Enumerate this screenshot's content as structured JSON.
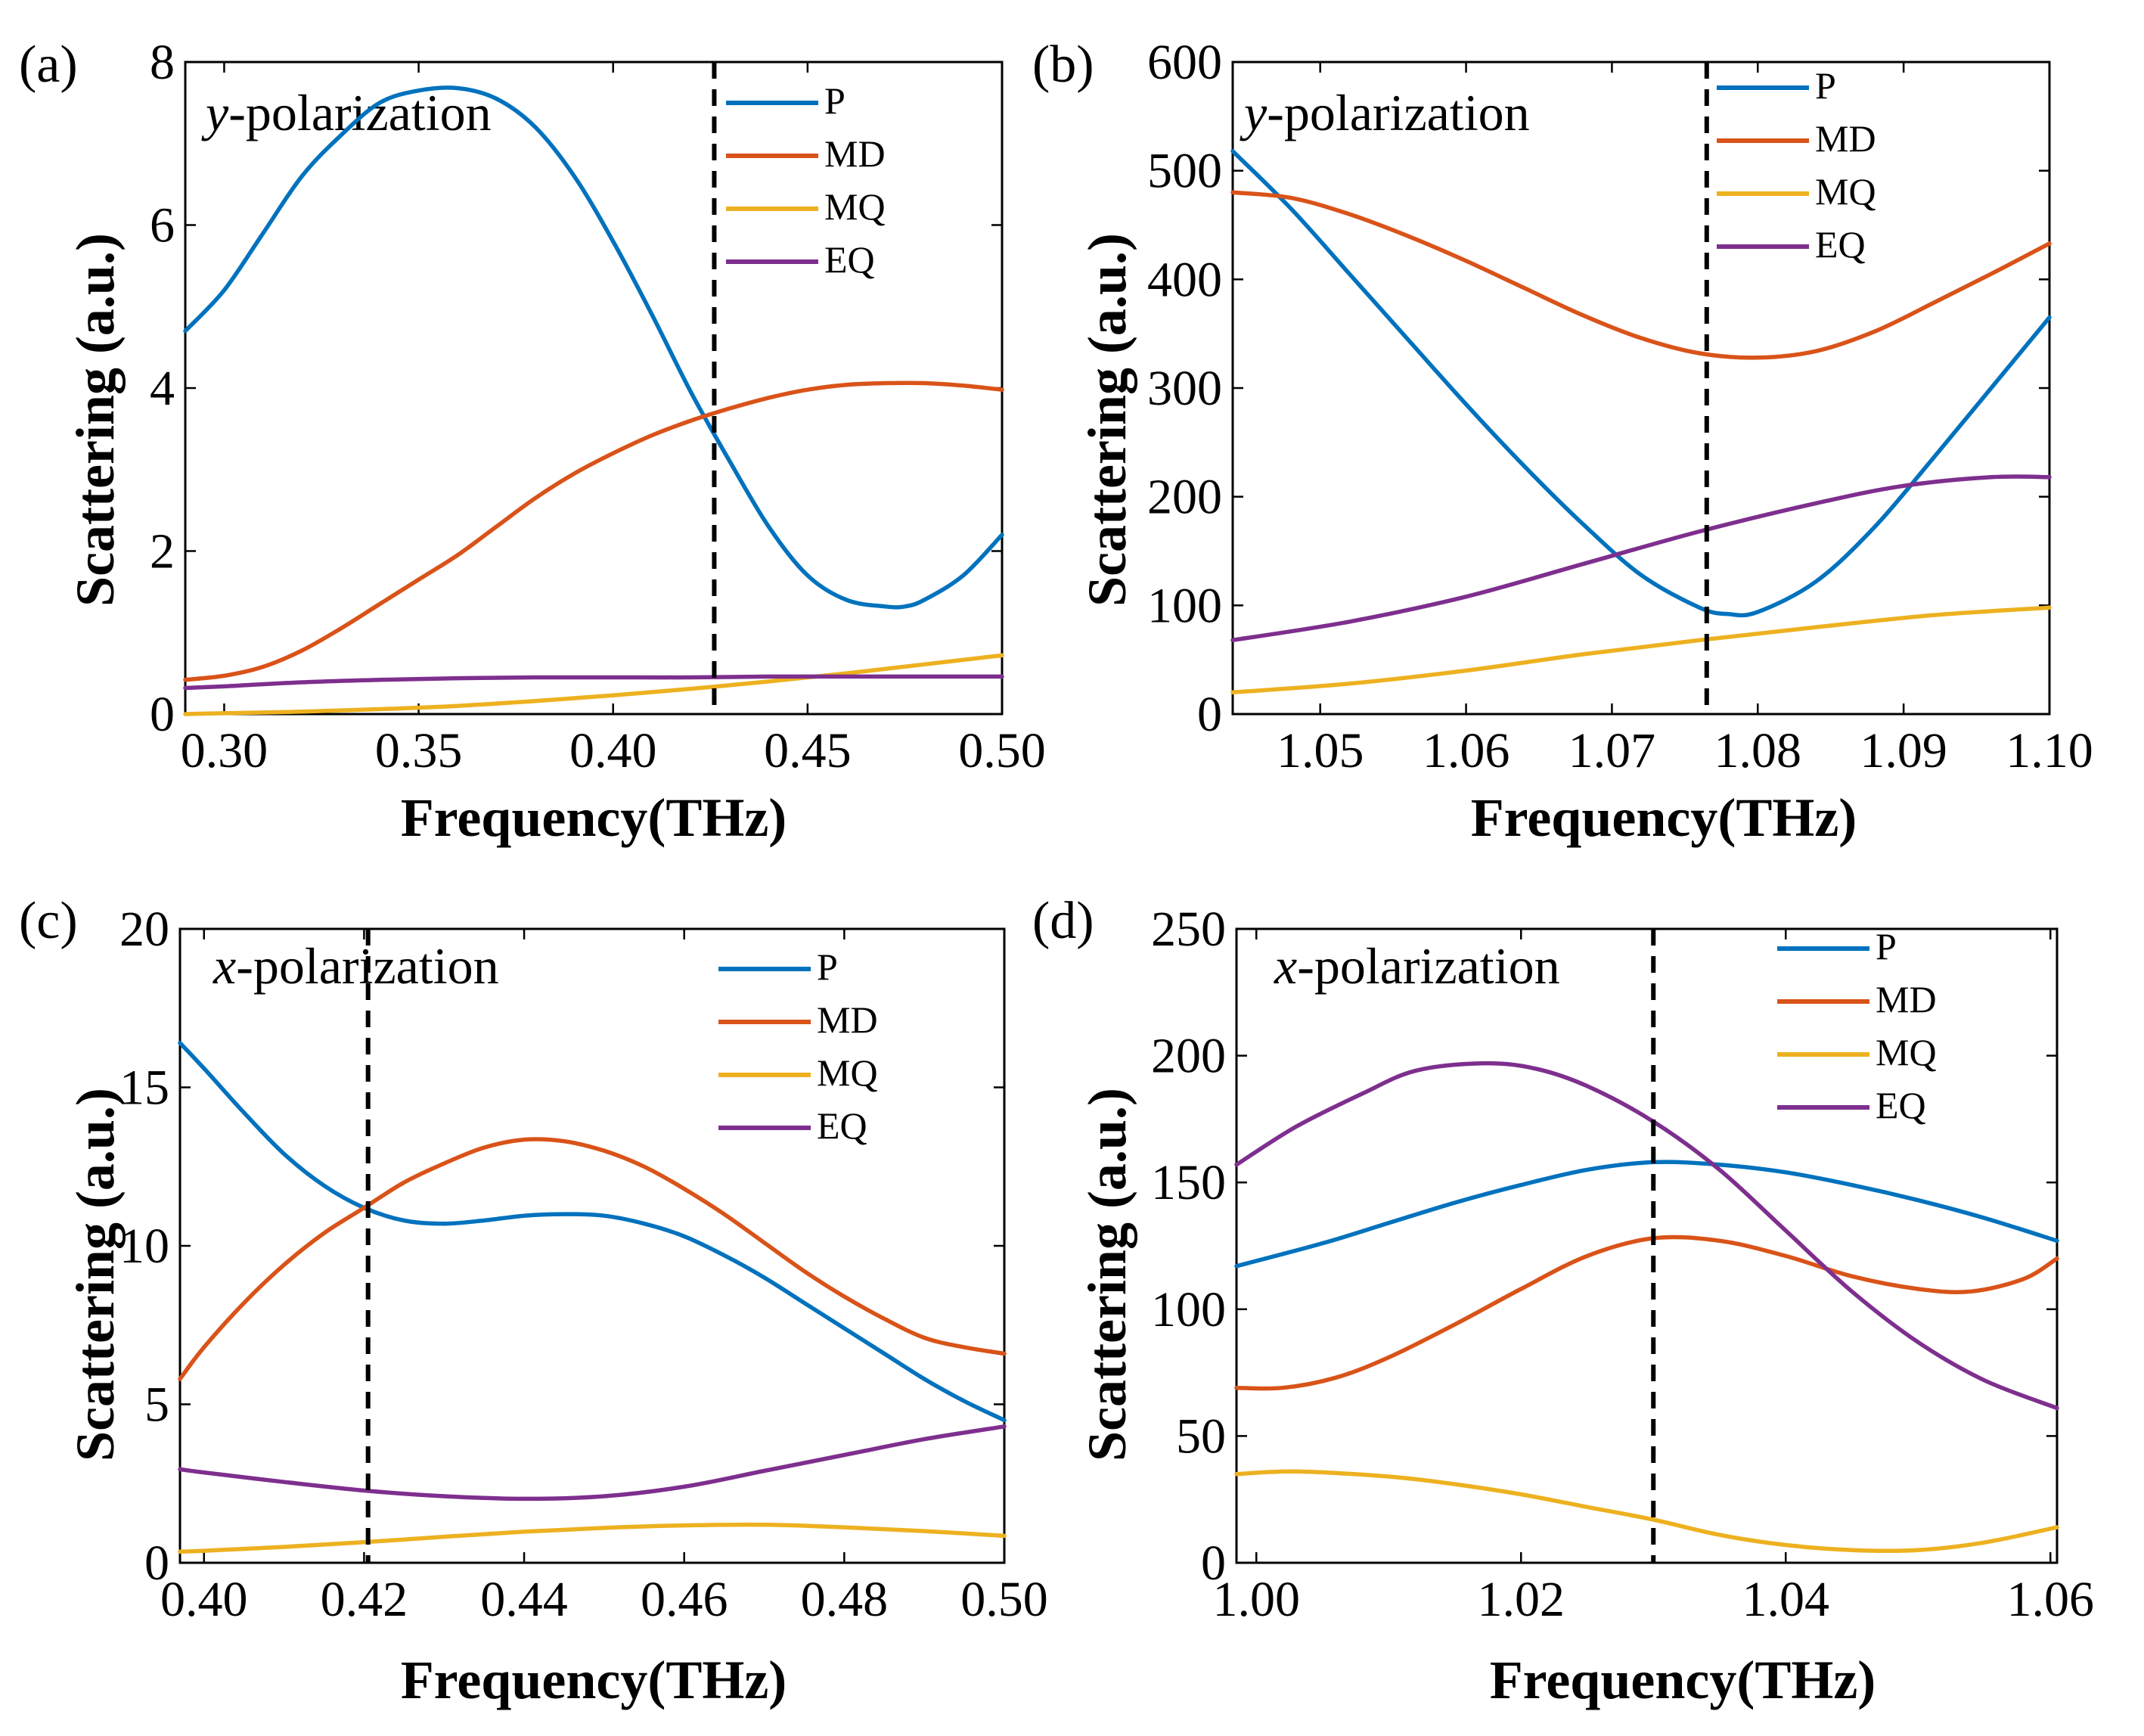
{
  "colors": {
    "P": "#0072BD",
    "MD": "#D95319",
    "MQ": "#EDB120",
    "EQ": "#7E2F8E"
  },
  "chart_data": [
    {
      "type": "line",
      "panel_label": "(a)",
      "polarization_prefix": "y",
      "polarization_suffix": "-polarization",
      "xlabel": "Frequency(THz)",
      "ylabel": "Scattering (a.u.)",
      "xlim": [
        0.29,
        0.5
      ],
      "ylim": [
        0,
        8
      ],
      "xticks": [
        0.3,
        0.35,
        0.4,
        0.45,
        0.5
      ],
      "xtick_labels": [
        "0.30",
        "0.35",
        "0.40",
        "0.45",
        "0.50"
      ],
      "yticks": [
        0,
        2,
        4,
        6,
        8
      ],
      "ytick_labels": [
        "0",
        "2",
        "4",
        "6",
        "8"
      ],
      "vline": 0.426,
      "legend": [
        "P",
        "MD",
        "MQ",
        "EQ"
      ],
      "series": [
        {
          "name": "P",
          "x": [
            0.29,
            0.3,
            0.31,
            0.32,
            0.33,
            0.34,
            0.35,
            0.36,
            0.37,
            0.38,
            0.39,
            0.4,
            0.41,
            0.42,
            0.43,
            0.44,
            0.45,
            0.46,
            0.47,
            0.475,
            0.48,
            0.49,
            0.5
          ],
          "y": [
            4.7,
            5.2,
            5.9,
            6.6,
            7.1,
            7.5,
            7.65,
            7.68,
            7.55,
            7.2,
            6.6,
            5.8,
            4.9,
            3.95,
            3.1,
            2.3,
            1.7,
            1.4,
            1.32,
            1.32,
            1.4,
            1.7,
            2.2
          ]
        },
        {
          "name": "MD",
          "x": [
            0.29,
            0.3,
            0.31,
            0.32,
            0.33,
            0.34,
            0.35,
            0.36,
            0.37,
            0.38,
            0.39,
            0.4,
            0.41,
            0.42,
            0.43,
            0.44,
            0.45,
            0.46,
            0.47,
            0.48,
            0.49,
            0.5
          ],
          "y": [
            0.42,
            0.47,
            0.58,
            0.78,
            1.05,
            1.35,
            1.65,
            1.95,
            2.3,
            2.65,
            2.95,
            3.2,
            3.42,
            3.6,
            3.75,
            3.88,
            3.98,
            4.04,
            4.06,
            4.06,
            4.03,
            3.98
          ]
        },
        {
          "name": "MQ",
          "x": [
            0.29,
            0.3,
            0.32,
            0.34,
            0.36,
            0.38,
            0.4,
            0.42,
            0.44,
            0.46,
            0.48,
            0.5
          ],
          "y": [
            0.0,
            0.01,
            0.03,
            0.06,
            0.1,
            0.16,
            0.23,
            0.31,
            0.4,
            0.5,
            0.61,
            0.72
          ]
        },
        {
          "name": "EQ",
          "x": [
            0.29,
            0.3,
            0.32,
            0.34,
            0.36,
            0.38,
            0.4,
            0.42,
            0.44,
            0.46,
            0.48,
            0.5
          ],
          "y": [
            0.32,
            0.34,
            0.39,
            0.42,
            0.44,
            0.45,
            0.45,
            0.45,
            0.46,
            0.46,
            0.46,
            0.46
          ]
        }
      ]
    },
    {
      "type": "line",
      "panel_label": "(b)",
      "polarization_prefix": "y",
      "polarization_suffix": "-polarization",
      "xlabel": "Frequency(THz)",
      "ylabel": "Scattering (a.u.)",
      "xlim": [
        1.044,
        1.1
      ],
      "ylim": [
        0,
        600
      ],
      "xticks": [
        1.05,
        1.06,
        1.07,
        1.08,
        1.09,
        1.1
      ],
      "xtick_labels": [
        "1.05",
        "1.06",
        "1.07",
        "1.08",
        "1.09",
        "1.10"
      ],
      "yticks": [
        0,
        100,
        200,
        300,
        400,
        500,
        600
      ],
      "ytick_labels": [
        "0",
        "100",
        "200",
        "300",
        "400",
        "500",
        "600"
      ],
      "vline": 1.0765,
      "legend": [
        "P",
        "MD",
        "MQ",
        "EQ"
      ],
      "series": [
        {
          "name": "P",
          "x": [
            1.044,
            1.048,
            1.052,
            1.056,
            1.06,
            1.064,
            1.068,
            1.072,
            1.076,
            1.078,
            1.08,
            1.084,
            1.088,
            1.092,
            1.096,
            1.1
          ],
          "y": [
            518,
            465,
            405,
            345,
            285,
            228,
            175,
            128,
            98,
            92,
            94,
            122,
            172,
            235,
            300,
            365
          ]
        },
        {
          "name": "MD",
          "x": [
            1.044,
            1.048,
            1.052,
            1.056,
            1.06,
            1.064,
            1.068,
            1.072,
            1.076,
            1.08,
            1.084,
            1.088,
            1.092,
            1.096,
            1.1
          ],
          "y": [
            480,
            475,
            460,
            440,
            417,
            392,
            367,
            346,
            332,
            328,
            334,
            352,
            378,
            405,
            433
          ]
        },
        {
          "name": "MQ",
          "x": [
            1.044,
            1.052,
            1.06,
            1.068,
            1.076,
            1.084,
            1.092,
            1.1
          ],
          "y": [
            20,
            28,
            40,
            55,
            68,
            80,
            91,
            98
          ]
        },
        {
          "name": "EQ",
          "x": [
            1.044,
            1.052,
            1.06,
            1.068,
            1.076,
            1.084,
            1.09,
            1.096,
            1.1
          ],
          "y": [
            68,
            85,
            108,
            138,
            168,
            194,
            210,
            218,
            218
          ]
        }
      ]
    },
    {
      "type": "line",
      "panel_label": "(c)",
      "polarization_prefix": "x",
      "polarization_suffix": "-polarization",
      "xlabel": "Frequency(THz)",
      "ylabel": "Scattering (a.u.)",
      "xlim": [
        0.397,
        0.5
      ],
      "ylim": [
        0,
        20
      ],
      "xticks": [
        0.4,
        0.42,
        0.44,
        0.46,
        0.48,
        0.5
      ],
      "xtick_labels": [
        "0.40",
        "0.42",
        "0.44",
        "0.46",
        "0.48",
        "0.50"
      ],
      "yticks": [
        0,
        5,
        10,
        15,
        20
      ],
      "ytick_labels": [
        "0",
        "5",
        "10",
        "15",
        "20"
      ],
      "vline": 0.4205,
      "legend": [
        "P",
        "MD",
        "MQ",
        "EQ"
      ],
      "series": [
        {
          "name": "P",
          "x": [
            0.397,
            0.4,
            0.405,
            0.41,
            0.415,
            0.42,
            0.425,
            0.43,
            0.435,
            0.44,
            0.445,
            0.45,
            0.455,
            0.46,
            0.465,
            0.47,
            0.475,
            0.48,
            0.485,
            0.49,
            0.495,
            0.5
          ],
          "y": [
            16.4,
            15.6,
            14.2,
            12.9,
            11.9,
            11.2,
            10.8,
            10.7,
            10.8,
            10.95,
            11.0,
            10.95,
            10.7,
            10.3,
            9.7,
            9.0,
            8.2,
            7.4,
            6.6,
            5.8,
            5.1,
            4.5
          ]
        },
        {
          "name": "MD",
          "x": [
            0.397,
            0.4,
            0.405,
            0.41,
            0.415,
            0.42,
            0.425,
            0.43,
            0.435,
            0.44,
            0.445,
            0.45,
            0.455,
            0.46,
            0.465,
            0.47,
            0.475,
            0.48,
            0.485,
            0.49,
            0.495,
            0.5
          ],
          "y": [
            5.8,
            6.8,
            8.2,
            9.4,
            10.4,
            11.2,
            12.0,
            12.6,
            13.1,
            13.35,
            13.3,
            13.0,
            12.5,
            11.8,
            11.0,
            10.1,
            9.2,
            8.4,
            7.7,
            7.1,
            6.8,
            6.6
          ]
        },
        {
          "name": "MQ",
          "x": [
            0.397,
            0.4,
            0.41,
            0.42,
            0.43,
            0.44,
            0.45,
            0.46,
            0.47,
            0.48,
            0.49,
            0.5
          ],
          "y": [
            0.35,
            0.38,
            0.5,
            0.65,
            0.82,
            0.98,
            1.1,
            1.18,
            1.2,
            1.12,
            1.0,
            0.85
          ]
        },
        {
          "name": "EQ",
          "x": [
            0.397,
            0.4,
            0.41,
            0.42,
            0.43,
            0.44,
            0.45,
            0.46,
            0.47,
            0.48,
            0.49,
            0.5
          ],
          "y": [
            2.95,
            2.85,
            2.55,
            2.28,
            2.1,
            2.02,
            2.1,
            2.4,
            2.9,
            3.4,
            3.9,
            4.3
          ]
        }
      ]
    },
    {
      "type": "line",
      "panel_label": "(d)",
      "polarization_prefix": "x",
      "polarization_suffix": "-polarization",
      "xlabel": "Frequency(THz)",
      "ylabel": "Scattering (a.u.)",
      "xlim": [
        0.9985,
        1.0605
      ],
      "ylim": [
        0,
        250
      ],
      "xticks": [
        1.0,
        1.02,
        1.04,
        1.06
      ],
      "xtick_labels": [
        "1.00",
        "1.02",
        "1.04",
        "1.06"
      ],
      "yticks": [
        0,
        50,
        100,
        150,
        200,
        250
      ],
      "ytick_labels": [
        "0",
        "50",
        "100",
        "150",
        "200",
        "250"
      ],
      "vline": 1.03,
      "legend": [
        "P",
        "MD",
        "MQ",
        "EQ"
      ],
      "series": [
        {
          "name": "P",
          "x": [
            0.9985,
            1.005,
            1.01,
            1.015,
            1.02,
            1.025,
            1.03,
            1.035,
            1.04,
            1.045,
            1.05,
            1.055,
            1.0605
          ],
          "y": [
            117,
            126,
            134,
            142,
            149,
            155,
            158,
            157,
            154,
            149,
            143,
            136,
            127
          ]
        },
        {
          "name": "MD",
          "x": [
            0.9985,
            1.002,
            1.006,
            1.01,
            1.015,
            1.02,
            1.025,
            1.03,
            1.035,
            1.04,
            1.045,
            1.05,
            1.054,
            1.058,
            1.0605
          ],
          "y": [
            69,
            69,
            73,
            81,
            94,
            108,
            121,
            128,
            127,
            121,
            113,
            108,
            107,
            112,
            120
          ]
        },
        {
          "name": "MQ",
          "x": [
            0.9985,
            1.003,
            1.01,
            1.015,
            1.02,
            1.025,
            1.03,
            1.035,
            1.04,
            1.045,
            1.05,
            1.055,
            1.0605
          ],
          "y": [
            35,
            36,
            34,
            31,
            27,
            22,
            17,
            11,
            7,
            5,
            5,
            8,
            14
          ]
        },
        {
          "name": "EQ",
          "x": [
            0.9985,
            1.003,
            1.008,
            1.012,
            1.017,
            1.021,
            1.025,
            1.03,
            1.035,
            1.04,
            1.045,
            1.05,
            1.055,
            1.0605
          ],
          "y": [
            157,
            172,
            185,
            194,
            197,
            195,
            188,
            174,
            155,
            131,
            107,
            87,
            72,
            61
          ]
        }
      ]
    }
  ]
}
